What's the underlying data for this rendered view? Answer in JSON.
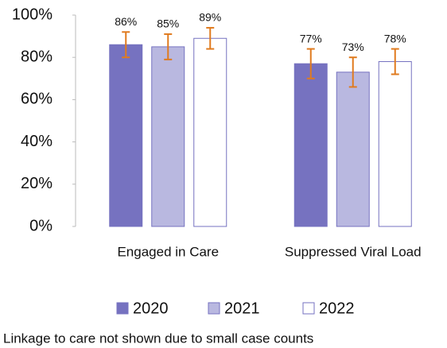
{
  "chart_data": {
    "type": "bar",
    "categories": [
      "Engaged in Care",
      "Suppressed Viral Load"
    ],
    "series": [
      {
        "name": "2020",
        "color": "#7672c0",
        "values": [
          86,
          77
        ],
        "value_labels": [
          "86%",
          "77%"
        ],
        "errors": [
          6,
          7
        ]
      },
      {
        "name": "2021",
        "color": "#b9b8e0",
        "values": [
          85,
          73
        ],
        "value_labels": [
          "85%",
          "73%"
        ],
        "errors": [
          6,
          7
        ]
      },
      {
        "name": "2022",
        "color": "#ffffff",
        "values": [
          89,
          78
        ],
        "value_labels": [
          "89%",
          "78%"
        ],
        "errors": [
          5,
          6
        ]
      }
    ],
    "ylim": [
      0,
      100
    ],
    "yticks": [
      {
        "value": 0,
        "label": "0%"
      },
      {
        "value": 20,
        "label": "20%"
      },
      {
        "value": 40,
        "label": "40%"
      },
      {
        "value": 60,
        "label": "60%"
      },
      {
        "value": 80,
        "label": "80%"
      },
      {
        "value": 100,
        "label": "100%"
      }
    ],
    "error_color": "#e07b1f",
    "outline_color": "#7672c0",
    "footnote": "Linkage to care not shown due to small case counts"
  }
}
